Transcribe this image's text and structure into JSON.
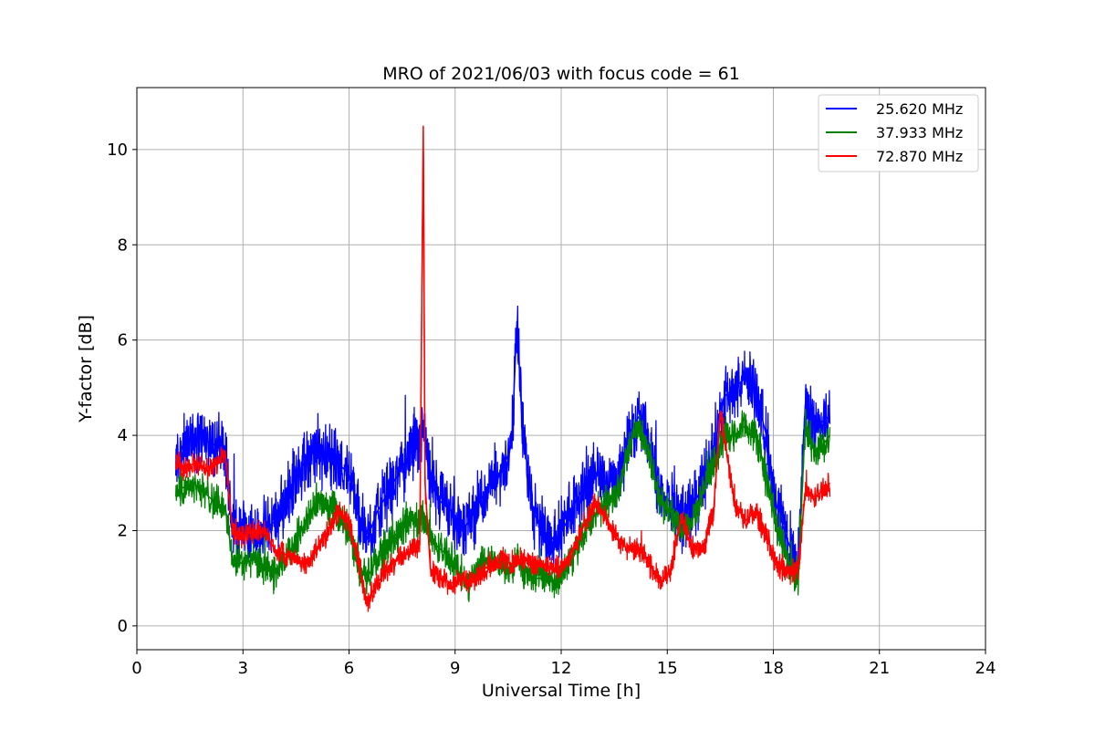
{
  "chart_data": {
    "type": "line",
    "title": "MRO of 2021/06/03 with focus code = 61",
    "xlabel": "Universal Time [h]",
    "ylabel": "Y-factor [dB]",
    "xlim": [
      0,
      24
    ],
    "ylim": [
      -0.5,
      11.3
    ],
    "xticks": [
      0,
      3,
      6,
      9,
      12,
      15,
      18,
      21,
      24
    ],
    "yticks": [
      0,
      2,
      4,
      6,
      8,
      10
    ],
    "grid": true,
    "legend_position": "top-right",
    "series": [
      {
        "name": "25.620 MHz",
        "color": "#0000ff",
        "x": [
          1.1,
          1.3,
          1.6,
          1.9,
          2.2,
          2.5,
          2.7,
          3.0,
          3.3,
          3.6,
          3.9,
          4.2,
          4.5,
          4.8,
          5.1,
          5.4,
          5.7,
          6.0,
          6.3,
          6.5,
          6.8,
          7.1,
          7.4,
          7.7,
          8.0,
          8.1,
          8.3,
          8.6,
          8.9,
          9.2,
          9.4,
          9.7,
          10.0,
          10.3,
          10.6,
          10.75,
          10.9,
          11.2,
          11.5,
          11.8,
          12.1,
          12.4,
          12.7,
          13.0,
          13.3,
          13.6,
          13.9,
          14.2,
          14.5,
          14.8,
          15.1,
          15.4,
          15.7,
          16.0,
          16.3,
          16.6,
          16.9,
          17.2,
          17.5,
          17.8,
          18.1,
          18.4,
          18.7,
          18.9,
          19.2,
          19.6
        ],
        "y": [
          3.4,
          3.8,
          4.0,
          3.9,
          3.8,
          3.7,
          2.0,
          2.1,
          2.0,
          2.0,
          2.2,
          2.6,
          3.1,
          3.5,
          3.7,
          3.6,
          3.4,
          3.2,
          2.3,
          1.8,
          2.4,
          2.8,
          3.2,
          3.6,
          3.8,
          4.1,
          3.0,
          2.6,
          2.4,
          2.0,
          2.2,
          2.6,
          3.0,
          3.2,
          3.8,
          6.4,
          4.2,
          2.4,
          2.0,
          1.8,
          2.1,
          2.6,
          3.0,
          3.2,
          3.0,
          3.1,
          4.0,
          4.4,
          3.8,
          2.8,
          2.6,
          2.3,
          2.4,
          3.0,
          3.6,
          4.8,
          5.0,
          5.2,
          4.9,
          4.0,
          2.5,
          1.8,
          1.2,
          4.6,
          4.2,
          4.4
        ],
        "noise": 0.55
      },
      {
        "name": "37.933 MHz",
        "color": "#008000",
        "x": [
          1.1,
          1.3,
          1.6,
          1.9,
          2.2,
          2.5,
          2.7,
          3.0,
          3.3,
          3.6,
          3.9,
          4.2,
          4.5,
          4.8,
          5.1,
          5.4,
          5.7,
          6.0,
          6.3,
          6.5,
          6.8,
          7.1,
          7.4,
          7.7,
          8.0,
          8.1,
          8.3,
          8.6,
          8.9,
          9.2,
          9.4,
          9.7,
          10.0,
          10.3,
          10.6,
          10.75,
          10.9,
          11.2,
          11.5,
          11.8,
          12.1,
          12.4,
          12.7,
          13.0,
          13.3,
          13.6,
          13.9,
          14.2,
          14.5,
          14.8,
          15.1,
          15.4,
          15.7,
          16.0,
          16.3,
          16.6,
          16.9,
          17.2,
          17.5,
          17.8,
          18.1,
          18.4,
          18.7,
          18.9,
          19.2,
          19.6
        ],
        "y": [
          2.8,
          2.9,
          3.0,
          2.8,
          2.6,
          2.5,
          1.4,
          1.3,
          1.4,
          1.2,
          1.1,
          1.4,
          1.8,
          2.2,
          2.6,
          2.5,
          2.3,
          2.0,
          1.2,
          1.0,
          1.4,
          1.7,
          2.0,
          2.2,
          2.2,
          2.4,
          1.8,
          1.6,
          1.4,
          1.0,
          0.9,
          1.3,
          1.4,
          1.3,
          1.2,
          1.4,
          1.2,
          1.0,
          1.0,
          0.9,
          1.2,
          1.6,
          2.0,
          2.4,
          2.6,
          2.8,
          3.8,
          4.2,
          3.6,
          2.6,
          2.4,
          2.0,
          2.2,
          2.8,
          3.4,
          4.0,
          4.0,
          4.2,
          4.0,
          3.2,
          2.0,
          1.4,
          1.0,
          4.2,
          3.6,
          4.0
        ],
        "noise": 0.3
      },
      {
        "name": "72.870 MHz",
        "color": "#ff0000",
        "x": [
          1.1,
          1.3,
          1.6,
          1.9,
          2.2,
          2.5,
          2.7,
          3.0,
          3.3,
          3.6,
          3.9,
          4.2,
          4.5,
          4.8,
          5.1,
          5.4,
          5.7,
          6.0,
          6.3,
          6.5,
          6.8,
          7.1,
          7.4,
          7.7,
          8.0,
          8.1,
          8.15,
          8.3,
          8.6,
          8.9,
          9.2,
          9.4,
          9.7,
          10.0,
          10.3,
          10.6,
          10.9,
          11.2,
          11.5,
          11.8,
          12.1,
          12.4,
          12.7,
          13.0,
          13.3,
          13.6,
          13.9,
          14.2,
          14.5,
          14.8,
          15.1,
          15.4,
          15.7,
          16.0,
          16.3,
          16.5,
          16.9,
          17.2,
          17.5,
          17.8,
          18.1,
          18.4,
          18.7,
          18.9,
          19.2,
          19.6
        ],
        "y": [
          3.5,
          3.3,
          3.4,
          3.3,
          3.4,
          3.6,
          2.0,
          1.9,
          2.0,
          2.0,
          1.6,
          1.5,
          1.4,
          1.3,
          1.6,
          2.0,
          2.4,
          2.2,
          1.2,
          0.5,
          0.9,
          1.2,
          1.4,
          1.6,
          1.7,
          10.5,
          3.0,
          1.2,
          1.0,
          0.9,
          1.0,
          0.9,
          1.1,
          1.3,
          1.4,
          1.3,
          1.4,
          1.3,
          1.3,
          1.2,
          1.3,
          1.7,
          2.2,
          2.6,
          2.2,
          1.8,
          1.6,
          1.6,
          1.3,
          0.9,
          1.2,
          2.3,
          1.6,
          1.6,
          2.3,
          4.5,
          2.6,
          2.2,
          2.4,
          1.9,
          1.3,
          1.1,
          1.2,
          2.8,
          2.7,
          3.0
        ],
        "noise": 0.2
      }
    ]
  }
}
